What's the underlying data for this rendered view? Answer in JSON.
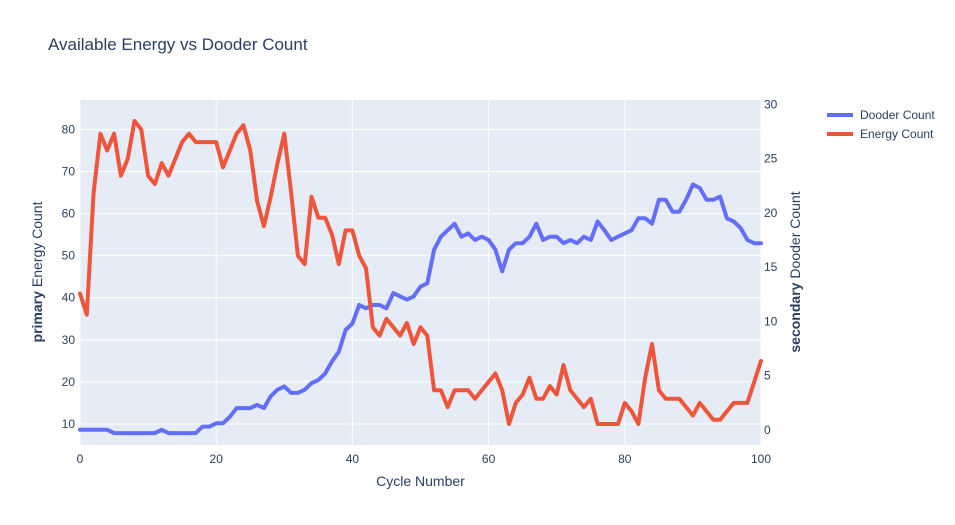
{
  "chart_data": {
    "type": "line",
    "title": "Available Energy vs Dooder Count",
    "xlabel": "Cycle Number",
    "ylabel_left_prefix": "primary",
    "ylabel_left": "Energy Count",
    "ylabel_right_prefix": "secondary",
    "ylabel_right": "Dooder Count",
    "xlim": [
      0,
      100
    ],
    "ylim_left": [
      5,
      87
    ],
    "ylim_right": [
      -1.4,
      30.4
    ],
    "x_ticks": [
      0,
      20,
      40,
      60,
      80,
      100
    ],
    "y_left_ticks": [
      10,
      20,
      30,
      40,
      50,
      60,
      70,
      80
    ],
    "y_right_ticks": [
      0,
      5,
      10,
      15,
      20,
      25,
      30
    ],
    "legend_position": "top-right",
    "grid": true,
    "series": [
      {
        "name": "Dooder Count",
        "axis": "right",
        "color": "#636efa",
        "x": [
          0,
          1,
          2,
          3,
          4,
          5,
          6,
          7,
          8,
          9,
          10,
          11,
          12,
          13,
          14,
          15,
          16,
          17,
          18,
          19,
          20,
          21,
          22,
          23,
          24,
          25,
          26,
          27,
          28,
          29,
          30,
          31,
          32,
          33,
          34,
          35,
          36,
          37,
          38,
          39,
          40,
          41,
          42,
          43,
          44,
          45,
          46,
          47,
          48,
          49,
          50,
          51,
          52,
          53,
          54,
          55,
          56,
          57,
          58,
          59,
          60,
          61,
          62,
          63,
          64,
          65,
          66,
          67,
          68,
          69,
          70,
          71,
          72,
          73,
          74,
          75,
          76,
          77,
          78,
          79,
          80,
          81,
          82,
          83,
          84,
          85,
          86,
          87,
          88,
          89,
          90,
          91,
          92,
          93,
          94,
          95,
          96,
          97,
          98,
          99,
          100
        ],
        "y": [
          0,
          0,
          0,
          0,
          0,
          -0.3,
          -0.3,
          -0.3,
          -0.3,
          -0.3,
          -0.3,
          -0.3,
          0,
          -0.3,
          -0.3,
          -0.3,
          -0.3,
          -0.3,
          0.3,
          0.3,
          0.6,
          0.6,
          1.2,
          2,
          2,
          2,
          2.3,
          2,
          3.1,
          3.7,
          4,
          3.4,
          3.4,
          3.7,
          4.3,
          4.6,
          5.2,
          6.3,
          7.2,
          9.2,
          9.8,
          11.5,
          11.2,
          11.5,
          11.5,
          11.2,
          12.6,
          12.3,
          12,
          12.3,
          13.2,
          13.5,
          16.6,
          17.8,
          18.4,
          19,
          17.8,
          18.1,
          17.5,
          17.8,
          17.5,
          16.6,
          14.6,
          16.6,
          17.2,
          17.2,
          17.8,
          19,
          17.5,
          17.8,
          17.8,
          17.2,
          17.5,
          17.2,
          17.8,
          17.5,
          19.2,
          18.4,
          17.5,
          17.8,
          18.1,
          18.4,
          19.5,
          19.5,
          19,
          21.2,
          21.2,
          20.1,
          20.1,
          21.2,
          22.6,
          22.3,
          21.2,
          21.2,
          21.5,
          19.5,
          19.2,
          18.6,
          17.5,
          17.2,
          17.2
        ]
      },
      {
        "name": "Energy Count",
        "axis": "left",
        "color": "#ef553b",
        "x": [
          0,
          1,
          2,
          3,
          4,
          5,
          6,
          7,
          8,
          9,
          10,
          11,
          12,
          13,
          14,
          15,
          16,
          17,
          18,
          19,
          20,
          21,
          22,
          23,
          24,
          25,
          26,
          27,
          28,
          29,
          30,
          31,
          32,
          33,
          34,
          35,
          36,
          37,
          38,
          39,
          40,
          41,
          42,
          43,
          44,
          45,
          46,
          47,
          48,
          49,
          50,
          51,
          52,
          53,
          54,
          55,
          56,
          57,
          58,
          59,
          60,
          61,
          62,
          63,
          64,
          65,
          66,
          67,
          68,
          69,
          70,
          71,
          72,
          73,
          74,
          75,
          76,
          77,
          78,
          79,
          80,
          81,
          82,
          83,
          84,
          85,
          86,
          87,
          88,
          89,
          90,
          91,
          92,
          93,
          94,
          95,
          96,
          97,
          98,
          99,
          100
        ],
        "y": [
          41,
          36,
          65,
          79,
          75,
          79,
          69,
          73,
          82,
          80,
          69,
          67,
          72,
          69,
          73,
          77,
          79,
          77,
          77,
          77,
          77,
          71,
          75,
          79,
          81,
          75,
          63,
          57,
          64,
          72,
          79,
          65,
          50,
          48,
          64,
          59,
          59,
          55,
          48,
          56,
          56,
          50,
          47,
          33,
          31,
          35,
          33,
          31,
          34,
          29,
          33,
          31,
          18,
          18,
          14,
          18,
          18,
          18,
          16,
          18,
          20,
          22,
          18,
          10,
          15,
          17,
          21,
          16,
          16,
          19,
          17,
          24,
          18,
          16,
          14,
          16,
          10,
          10,
          10,
          10,
          15,
          13,
          10,
          21,
          29,
          18,
          16,
          16,
          16,
          14,
          12,
          15,
          13,
          11,
          11,
          13,
          15,
          15,
          15,
          20,
          25
        ]
      }
    ]
  }
}
